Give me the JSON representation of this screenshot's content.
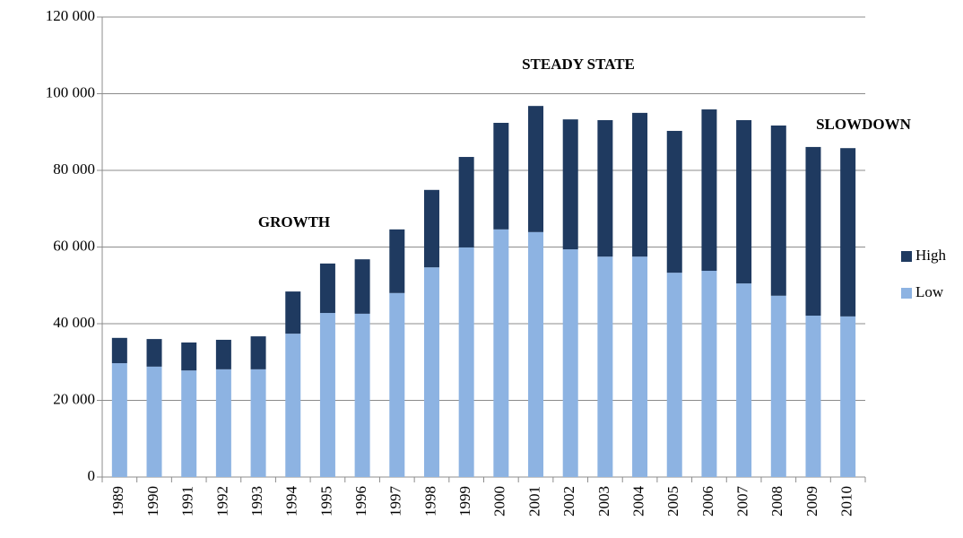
{
  "chart_data": {
    "type": "stacked-bar",
    "categories": [
      "1989",
      "1990",
      "1991",
      "1992",
      "1993",
      "1994",
      "1995",
      "1996",
      "1997",
      "1998",
      "1999",
      "2000",
      "2001",
      "2002",
      "2003",
      "2004",
      "2005",
      "2006",
      "2007",
      "2008",
      "2009",
      "2010"
    ],
    "series": [
      {
        "name": "Low",
        "color": "#8db3e2",
        "values": [
          29700,
          28800,
          27800,
          28100,
          28100,
          37400,
          42800,
          42600,
          48000,
          54700,
          59900,
          64600,
          63900,
          59400,
          57500,
          57500,
          53300,
          53800,
          50500,
          47300,
          42100,
          41900
        ]
      },
      {
        "name": "High",
        "color": "#1f3a60",
        "values": [
          6600,
          7200,
          7300,
          7700,
          8600,
          11000,
          12900,
          14200,
          16600,
          20200,
          23600,
          27800,
          32900,
          33900,
          35600,
          37500,
          37000,
          42100,
          42600,
          44400,
          44000,
          43900
        ]
      }
    ],
    "ylim": [
      0,
      120000
    ],
    "yticks": [
      0,
      {
        "value": 20000,
        "label": "20 000"
      },
      {
        "value": 40000,
        "label": "40 000"
      },
      {
        "value": 60000,
        "label": "60 000"
      },
      {
        "value": 80000,
        "label": "80 000"
      },
      {
        "value": 100000,
        "label": "100 000"
      },
      {
        "value": 120000,
        "label": "120 000"
      }
    ],
    "grid": true,
    "legend": "right",
    "annotations": [
      "GROWTH",
      "STEADY STATE",
      "SLOWDOWN"
    ]
  }
}
